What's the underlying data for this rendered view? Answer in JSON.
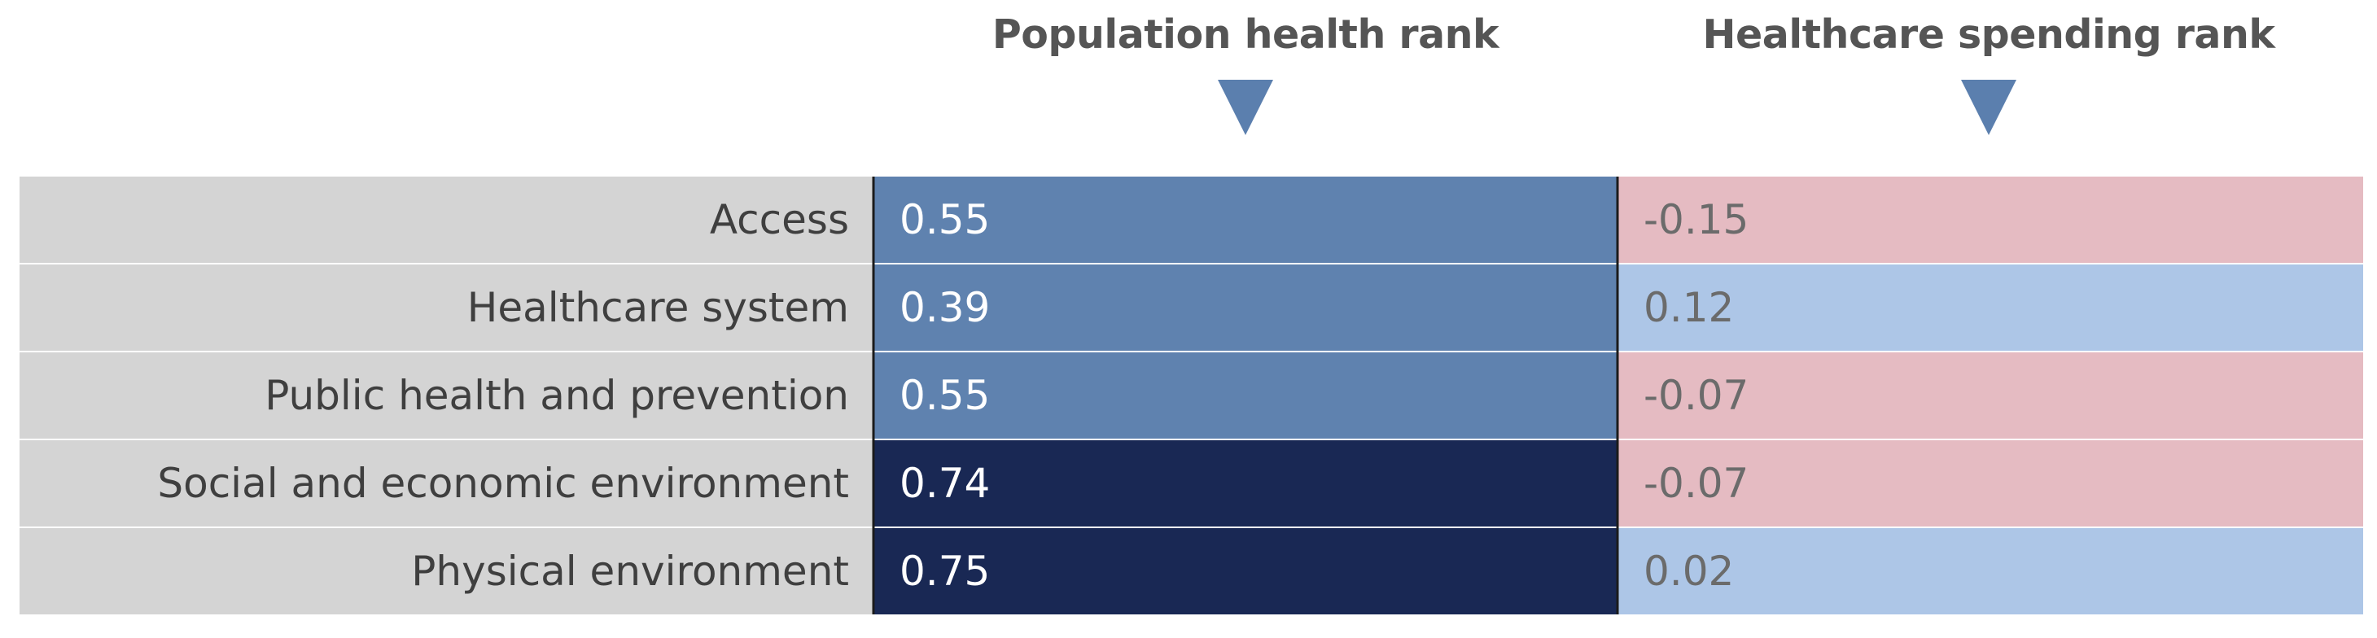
{
  "chart_data": {
    "type": "heatmap",
    "title": "",
    "columns": [
      "Population health rank",
      "Healthcare spending rank"
    ],
    "rows": [
      "Access",
      "Healthcare system",
      "Public health and prevention",
      "Social and economic environment",
      "Physical environment"
    ],
    "values": [
      [
        0.55,
        -0.15
      ],
      [
        0.39,
        0.12
      ],
      [
        0.55,
        -0.07
      ],
      [
        0.74,
        -0.07
      ],
      [
        0.75,
        0.02
      ]
    ],
    "labels": [
      [
        "0.55",
        "-0.15"
      ],
      [
        "0.39",
        "0.12"
      ],
      [
        "0.55",
        "-0.07"
      ],
      [
        "0.74",
        "-0.07"
      ],
      [
        "0.75",
        "0.02"
      ]
    ],
    "colors": {
      "label_background": "#d4d4d4",
      "strong_positive": "#192854",
      "moderate_positive": "#5f82af",
      "weak_positive": "#adc6e7",
      "negative": "#e5bbc2",
      "header_text": "#555555",
      "arrow": "#5b7fae"
    }
  }
}
